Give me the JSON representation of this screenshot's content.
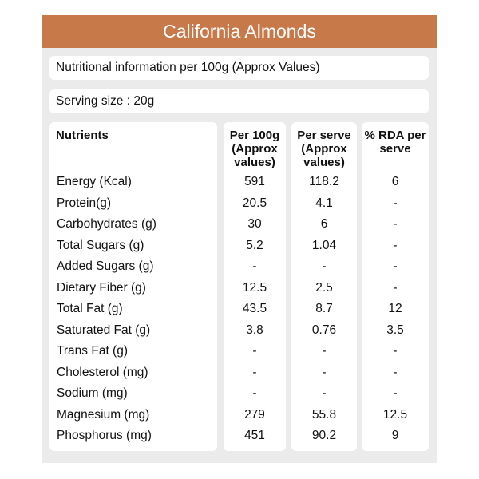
{
  "header": {
    "title": "California Almonds"
  },
  "info": "Nutritional information per 100g (Approx Values)",
  "serving": "Serving size : 20g",
  "table": {
    "columns": [
      "Nutrients",
      "Per 100g (Approx values)",
      "Per serve (Approx values)",
      "% RDA per serve"
    ],
    "rows": [
      [
        "Energy (Kcal)",
        "591",
        "118.2",
        "6"
      ],
      [
        "Protein(g)",
        "20.5",
        "4.1",
        "-"
      ],
      [
        "Carbohydrates (g)",
        "30",
        "6",
        "-"
      ],
      [
        "Total Sugars (g)",
        "5.2",
        "1.04",
        "-"
      ],
      [
        "Added Sugars (g)",
        "-",
        "-",
        "-"
      ],
      [
        "Dietary Fiber (g)",
        "12.5",
        "2.5",
        "-"
      ],
      [
        "Total Fat (g)",
        "43.5",
        "8.7",
        "12"
      ],
      [
        "Saturated Fat (g)",
        "3.8",
        "0.76",
        "3.5"
      ],
      [
        "Trans Fat (g)",
        "-",
        "-",
        "-"
      ],
      [
        "Cholesterol (mg)",
        "-",
        "-",
        "-"
      ],
      [
        "Sodium (mg)",
        "-",
        "-",
        "-"
      ],
      [
        "Magnesium (mg)",
        "279",
        "55.8",
        "12.5"
      ],
      [
        "Phosphorus (mg)",
        "451",
        "90.2",
        "9"
      ]
    ]
  }
}
